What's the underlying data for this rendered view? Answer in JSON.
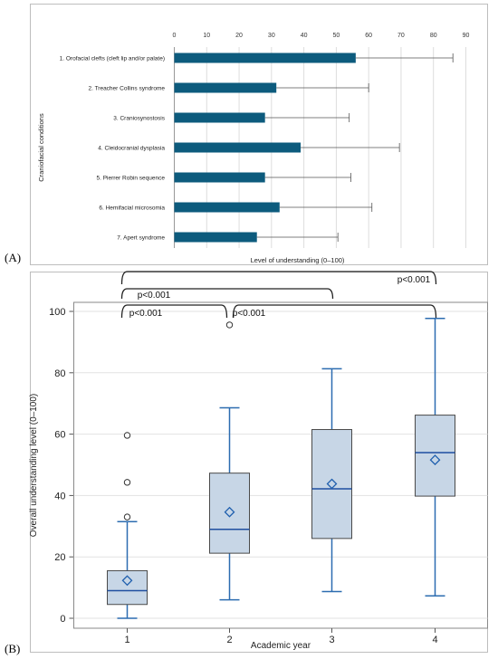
{
  "panel_labels": {
    "a": "(A)",
    "b": "(B)"
  },
  "chart_data": [
    {
      "type": "bar",
      "orientation": "horizontal",
      "ylabel": "Craniofacial conditions",
      "xlabel": "Level of understanding (0–100)",
      "xlim": [
        0,
        90
      ],
      "xticks": [
        "0",
        "10",
        "20",
        "30",
        "40",
        "50",
        "60",
        "70",
        "80",
        "90"
      ],
      "grid": true,
      "categories": [
        "1. Orofacial clefts (cleft lip and/or palate)",
        "2. Treacher Collins syndrome",
        "3. Craniosynostosis",
        "4. Cleidocranial dysplasia",
        "5. Pierrer Robin sequence",
        "6. Hemifacial microsomia",
        "7. Apert syndrome"
      ],
      "values": [
        56,
        31.5,
        28,
        39,
        28,
        32.5,
        25.5
      ],
      "error_upper": [
        86,
        60,
        54,
        69.5,
        54.5,
        61,
        50.5
      ],
      "colors": {
        "bar": "#0d5b7d",
        "error": "#555555",
        "grid": "#dddddd"
      }
    },
    {
      "type": "box",
      "xlabel": "Academic year",
      "ylabel": "Overall understanding level (0–100)",
      "ylim": [
        0,
        100
      ],
      "yticks": [
        "0",
        "20",
        "40",
        "60",
        "80",
        "100"
      ],
      "grid": true,
      "categories": [
        "1",
        "2",
        "3",
        "4"
      ],
      "boxes": [
        {
          "whisker_low": 0,
          "q1": 4.5,
          "median": 9,
          "q3": 15.5,
          "whisker_high": 31.5,
          "mean": 12.3,
          "outliers": [
            33,
            44.3,
            59.6
          ]
        },
        {
          "whisker_low": 6,
          "q1": 21.2,
          "median": 29,
          "q3": 47.3,
          "whisker_high": 68.6,
          "mean": 34.6,
          "outliers": [
            95.6
          ]
        },
        {
          "whisker_low": 8.7,
          "q1": 26,
          "median": 42.2,
          "q3": 61.5,
          "whisker_high": 81.3,
          "mean": 43.8,
          "outliers": []
        },
        {
          "whisker_low": 7.3,
          "q1": 39.8,
          "median": 54,
          "q3": 66.2,
          "whisker_high": 97.7,
          "mean": 51.6,
          "outliers": []
        }
      ],
      "significance": [
        {
          "from": "1",
          "to": "2",
          "label": "p<0.001"
        },
        {
          "from": "2",
          "to": "4",
          "label": "p<0.001"
        },
        {
          "from": "1",
          "to": "3",
          "label": "p<0.001"
        },
        {
          "from": "1",
          "to": "4",
          "label": "p<0.001"
        }
      ],
      "colors": {
        "box_fill": "#c7d6e6",
        "box_stroke": "#4a4a4a",
        "whisker": "#2c6cb0",
        "median": "#1f4fa0",
        "mean": "#1f5fae",
        "grid": "#e2e2e2"
      }
    }
  ]
}
